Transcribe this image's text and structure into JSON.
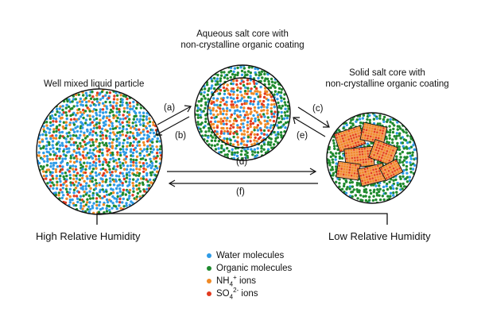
{
  "labels": {
    "aqueous_core": [
      "Aqueous salt core with",
      "non-crystalline organic coating"
    ],
    "mixed_particle": "Well mixed liquid particle",
    "solid_core": [
      "Solid salt core with",
      "non-crystalline organic coating"
    ],
    "high_rh": "High Relative Humidity",
    "low_rh": "Low Relative Humidity"
  },
  "transitions": {
    "a": "(a)",
    "b": "(b)",
    "c": "(c)",
    "e": "(e)",
    "d": "(d)",
    "f": "(f)"
  },
  "legend": [
    {
      "text": "Water molecules",
      "color": "#2e9be6"
    },
    {
      "text": "Organic molecules",
      "color": "#1f8a2e"
    },
    {
      "text_main": "NH",
      "sub": "4",
      "sup": "+",
      "suffix": " ions",
      "color": "#f08a25"
    },
    {
      "text_main": "SO",
      "sub": "4",
      "sup": "2-",
      "suffix": " ions",
      "color": "#e23a1f"
    }
  ],
  "colors": {
    "water": "#2e9be6",
    "organic": "#1f8a2e",
    "nh4": "#f08a25",
    "so4": "#e23a1f",
    "line": "#111111"
  }
}
